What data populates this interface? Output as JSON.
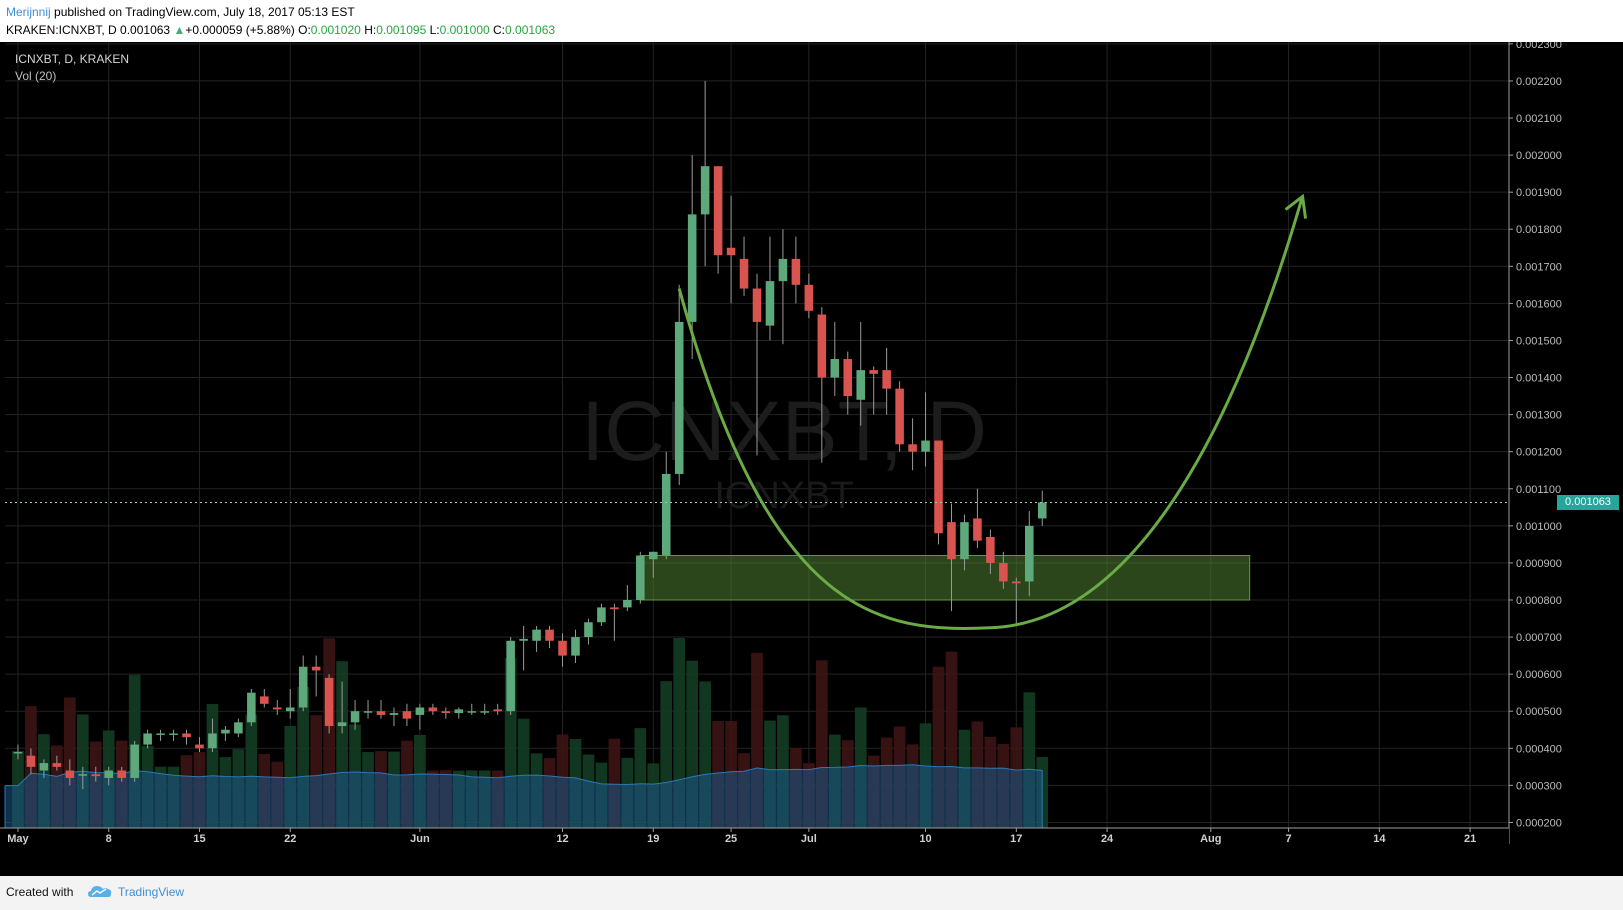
{
  "header": {
    "author": "Merijnnij",
    "published_text": "published on TradingView.com, July 18, 2017 05:13 EST",
    "symbol": "KRAKEN:ICNXBT, D",
    "last": "0.001063",
    "change_arrow": "▲",
    "change": "+0.000059 (+5.88%)",
    "o_label": "O:",
    "o_value": "0.001020",
    "h_label": "H:",
    "h_value": "0.001095",
    "l_label": "L:",
    "l_value": "0.001000",
    "c_label": "C:",
    "c_value": "0.001063"
  },
  "pane": {
    "title": "ICNXBT, D, KRAKEN",
    "volume_label": "Vol (20)",
    "watermark_big": "ICNXBT, D",
    "watermark_small": "ICNXBT",
    "last_price_label": "0.001063"
  },
  "footer": {
    "created_with": "Created with",
    "brand": "TradingView"
  },
  "colors": {
    "background": "#000000",
    "up_candle": "#5ea97c",
    "down_candle": "#d9534f",
    "support_zone": "#4f7f2f",
    "curve": "#6aab45",
    "volume_ma": "#1e5a8a",
    "grid": "#232323"
  },
  "chart_data": {
    "type": "candlestick",
    "y_axis": {
      "min": 0.000185,
      "max": 0.002305,
      "ticks": [
        "0.002300",
        "0.002200",
        "0.002100",
        "0.002000",
        "0.001900",
        "0.001800",
        "0.001700",
        "0.001600",
        "0.001500",
        "0.001400",
        "0.001300",
        "0.001200",
        "0.001100",
        "0.001000",
        "0.000900",
        "0.000800",
        "0.000700",
        "0.000600",
        "0.000500",
        "0.000400",
        "0.000300",
        "0.000200"
      ]
    },
    "x_axis": {
      "start_date": "2017-04-30",
      "end_date": "2017-08-24",
      "ticks": [
        {
          "date": "2017-05-01",
          "label": "May"
        },
        {
          "date": "2017-05-08",
          "label": "8"
        },
        {
          "date": "2017-05-15",
          "label": "15"
        },
        {
          "date": "2017-05-22",
          "label": "22"
        },
        {
          "date": "2017-06-01",
          "label": "Jun"
        },
        {
          "date": "2017-06-12",
          "label": "12"
        },
        {
          "date": "2017-06-19",
          "label": "19"
        },
        {
          "date": "2017-06-25",
          "label": "25"
        },
        {
          "date": "2017-07-01",
          "label": "Jul"
        },
        {
          "date": "2017-07-10",
          "label": "10"
        },
        {
          "date": "2017-07-17",
          "label": "17"
        },
        {
          "date": "2017-07-24",
          "label": "24"
        },
        {
          "date": "2017-08-01",
          "label": "Aug"
        },
        {
          "date": "2017-08-07",
          "label": "7"
        },
        {
          "date": "2017-08-14",
          "label": "14"
        },
        {
          "date": "2017-08-21",
          "label": "21"
        }
      ]
    },
    "candles": [
      {
        "date": "2017-05-01",
        "o": 0.00039,
        "h": 0.00041,
        "l": 0.00037,
        "c": 0.00039
      },
      {
        "date": "2017-05-02",
        "o": 0.00038,
        "h": 0.0004,
        "l": 0.00033,
        "c": 0.00035
      },
      {
        "date": "2017-05-03",
        "o": 0.00034,
        "h": 0.00037,
        "l": 0.00032,
        "c": 0.00036
      },
      {
        "date": "2017-05-04",
        "o": 0.00036,
        "h": 0.00038,
        "l": 0.00034,
        "c": 0.00035
      },
      {
        "date": "2017-05-05",
        "o": 0.00034,
        "h": 0.00037,
        "l": 0.0003,
        "c": 0.00032
      },
      {
        "date": "2017-05-06",
        "o": 0.00033,
        "h": 0.00035,
        "l": 0.00029,
        "c": 0.00033
      },
      {
        "date": "2017-05-07",
        "o": 0.00033,
        "h": 0.00035,
        "l": 0.00031,
        "c": 0.000325
      },
      {
        "date": "2017-05-08",
        "o": 0.00032,
        "h": 0.00035,
        "l": 0.0003,
        "c": 0.00034
      },
      {
        "date": "2017-05-09",
        "o": 0.00034,
        "h": 0.00035,
        "l": 0.00031,
        "c": 0.00032
      },
      {
        "date": "2017-05-10",
        "o": 0.00032,
        "h": 0.00042,
        "l": 0.00031,
        "c": 0.00041
      },
      {
        "date": "2017-05-11",
        "o": 0.00041,
        "h": 0.00045,
        "l": 0.0004,
        "c": 0.00044
      },
      {
        "date": "2017-05-12",
        "o": 0.00044,
        "h": 0.00045,
        "l": 0.00042,
        "c": 0.00044
      },
      {
        "date": "2017-05-13",
        "o": 0.00044,
        "h": 0.00045,
        "l": 0.00042,
        "c": 0.00044
      },
      {
        "date": "2017-05-14",
        "o": 0.00044,
        "h": 0.00045,
        "l": 0.00041,
        "c": 0.00043
      },
      {
        "date": "2017-05-15",
        "o": 0.00041,
        "h": 0.00043,
        "l": 0.00039,
        "c": 0.0004
      },
      {
        "date": "2017-05-16",
        "o": 0.0004,
        "h": 0.00048,
        "l": 0.00039,
        "c": 0.00044
      },
      {
        "date": "2017-05-17",
        "o": 0.00044,
        "h": 0.00046,
        "l": 0.00042,
        "c": 0.00045
      },
      {
        "date": "2017-05-18",
        "o": 0.00044,
        "h": 0.00048,
        "l": 0.00043,
        "c": 0.00047
      },
      {
        "date": "2017-05-19",
        "o": 0.00047,
        "h": 0.00056,
        "l": 0.00046,
        "c": 0.00055
      },
      {
        "date": "2017-05-20",
        "o": 0.00054,
        "h": 0.00056,
        "l": 0.00051,
        "c": 0.00052
      },
      {
        "date": "2017-05-21",
        "o": 0.00051,
        "h": 0.00053,
        "l": 0.00049,
        "c": 0.000505
      },
      {
        "date": "2017-05-22",
        "o": 0.0005,
        "h": 0.00056,
        "l": 0.00048,
        "c": 0.00051
      },
      {
        "date": "2017-05-23",
        "o": 0.00051,
        "h": 0.00065,
        "l": 0.0005,
        "c": 0.00062
      },
      {
        "date": "2017-05-24",
        "o": 0.00062,
        "h": 0.00065,
        "l": 0.00054,
        "c": 0.00061
      },
      {
        "date": "2017-05-25",
        "o": 0.00059,
        "h": 0.0006,
        "l": 0.00044,
        "c": 0.00046
      },
      {
        "date": "2017-05-26",
        "o": 0.00046,
        "h": 0.00058,
        "l": 0.00044,
        "c": 0.00047
      },
      {
        "date": "2017-05-27",
        "o": 0.00047,
        "h": 0.00053,
        "l": 0.00045,
        "c": 0.0005
      },
      {
        "date": "2017-05-28",
        "o": 0.0005,
        "h": 0.00053,
        "l": 0.00048,
        "c": 0.0005
      },
      {
        "date": "2017-05-29",
        "o": 0.0005,
        "h": 0.00053,
        "l": 0.00048,
        "c": 0.00049
      },
      {
        "date": "2017-05-30",
        "o": 0.00049,
        "h": 0.00051,
        "l": 0.00046,
        "c": 0.000495
      },
      {
        "date": "2017-05-31",
        "o": 0.0005,
        "h": 0.00052,
        "l": 0.00046,
        "c": 0.00048
      },
      {
        "date": "2017-06-01",
        "o": 0.00049,
        "h": 0.00052,
        "l": 0.00045,
        "c": 0.00051
      },
      {
        "date": "2017-06-02",
        "o": 0.00051,
        "h": 0.00052,
        "l": 0.00049,
        "c": 0.0005
      },
      {
        "date": "2017-06-03",
        "o": 0.0005,
        "h": 0.00051,
        "l": 0.00048,
        "c": 0.000495
      },
      {
        "date": "2017-06-04",
        "o": 0.000495,
        "h": 0.00051,
        "l": 0.00048,
        "c": 0.000505
      },
      {
        "date": "2017-06-05",
        "o": 0.0005,
        "h": 0.00052,
        "l": 0.00049,
        "c": 0.0005
      },
      {
        "date": "2017-06-06",
        "o": 0.0005,
        "h": 0.00052,
        "l": 0.00049,
        "c": 0.0005
      },
      {
        "date": "2017-06-07",
        "o": 0.000505,
        "h": 0.00052,
        "l": 0.00049,
        "c": 0.0005
      },
      {
        "date": "2017-06-08",
        "o": 0.0005,
        "h": 0.0007,
        "l": 0.00049,
        "c": 0.00069
      },
      {
        "date": "2017-06-09",
        "o": 0.00069,
        "h": 0.00073,
        "l": 0.00061,
        "c": 0.000695
      },
      {
        "date": "2017-06-10",
        "o": 0.00069,
        "h": 0.00073,
        "l": 0.00066,
        "c": 0.00072
      },
      {
        "date": "2017-06-11",
        "o": 0.00072,
        "h": 0.00073,
        "l": 0.00067,
        "c": 0.00069
      },
      {
        "date": "2017-06-12",
        "o": 0.00069,
        "h": 0.00071,
        "l": 0.00062,
        "c": 0.00065
      },
      {
        "date": "2017-06-13",
        "o": 0.00065,
        "h": 0.00072,
        "l": 0.00063,
        "c": 0.0007
      },
      {
        "date": "2017-06-14",
        "o": 0.0007,
        "h": 0.00075,
        "l": 0.00068,
        "c": 0.00074
      },
      {
        "date": "2017-06-15",
        "o": 0.00074,
        "h": 0.00079,
        "l": 0.00073,
        "c": 0.00078
      },
      {
        "date": "2017-06-16",
        "o": 0.00078,
        "h": 0.00079,
        "l": 0.00069,
        "c": 0.000775
      },
      {
        "date": "2017-06-17",
        "o": 0.00078,
        "h": 0.00084,
        "l": 0.00077,
        "c": 0.0008
      },
      {
        "date": "2017-06-18",
        "o": 0.0008,
        "h": 0.00093,
        "l": 0.00079,
        "c": 0.00092
      },
      {
        "date": "2017-06-19",
        "o": 0.00091,
        "h": 0.00093,
        "l": 0.00086,
        "c": 0.00093
      },
      {
        "date": "2017-06-20",
        "o": 0.00092,
        "h": 0.0012,
        "l": 0.00091,
        "c": 0.00114
      },
      {
        "date": "2017-06-21",
        "o": 0.00114,
        "h": 0.00165,
        "l": 0.00111,
        "c": 0.00155
      },
      {
        "date": "2017-06-22",
        "o": 0.00155,
        "h": 0.002,
        "l": 0.00145,
        "c": 0.00184
      },
      {
        "date": "2017-06-23",
        "o": 0.00184,
        "h": 0.0022,
        "l": 0.0017,
        "c": 0.00197
      },
      {
        "date": "2017-06-24",
        "o": 0.00197,
        "h": 0.00197,
        "l": 0.00168,
        "c": 0.00173
      },
      {
        "date": "2017-06-25",
        "o": 0.00175,
        "h": 0.00189,
        "l": 0.0016,
        "c": 0.00173
      },
      {
        "date": "2017-06-26",
        "o": 0.00172,
        "h": 0.00178,
        "l": 0.00162,
        "c": 0.00164
      },
      {
        "date": "2017-06-27",
        "o": 0.00164,
        "h": 0.00168,
        "l": 0.00119,
        "c": 0.00155
      },
      {
        "date": "2017-06-28",
        "o": 0.00154,
        "h": 0.00178,
        "l": 0.0015,
        "c": 0.00166
      },
      {
        "date": "2017-06-29",
        "o": 0.00166,
        "h": 0.0018,
        "l": 0.00149,
        "c": 0.00172
      },
      {
        "date": "2017-06-30",
        "o": 0.00172,
        "h": 0.00178,
        "l": 0.0016,
        "c": 0.00165
      },
      {
        "date": "2017-07-01",
        "o": 0.00165,
        "h": 0.00168,
        "l": 0.00156,
        "c": 0.00158
      },
      {
        "date": "2017-07-02",
        "o": 0.00157,
        "h": 0.00159,
        "l": 0.00117,
        "c": 0.0014
      },
      {
        "date": "2017-07-03",
        "o": 0.0014,
        "h": 0.00155,
        "l": 0.00135,
        "c": 0.00145
      },
      {
        "date": "2017-07-04",
        "o": 0.00145,
        "h": 0.00147,
        "l": 0.0013,
        "c": 0.00135
      },
      {
        "date": "2017-07-05",
        "o": 0.00134,
        "h": 0.00155,
        "l": 0.00127,
        "c": 0.00142
      },
      {
        "date": "2017-07-06",
        "o": 0.00142,
        "h": 0.00143,
        "l": 0.0013,
        "c": 0.00141
      },
      {
        "date": "2017-07-07",
        "o": 0.00142,
        "h": 0.00148,
        "l": 0.0013,
        "c": 0.00137
      },
      {
        "date": "2017-07-08",
        "o": 0.00137,
        "h": 0.00139,
        "l": 0.0012,
        "c": 0.00122
      },
      {
        "date": "2017-07-09",
        "o": 0.00122,
        "h": 0.00129,
        "l": 0.00115,
        "c": 0.0012
      },
      {
        "date": "2017-07-10",
        "o": 0.0012,
        "h": 0.00136,
        "l": 0.00116,
        "c": 0.00123
      },
      {
        "date": "2017-07-11",
        "o": 0.00123,
        "h": 0.00123,
        "l": 0.00095,
        "c": 0.00098
      },
      {
        "date": "2017-07-12",
        "o": 0.00101,
        "h": 0.00106,
        "l": 0.00077,
        "c": 0.00091
      },
      {
        "date": "2017-07-13",
        "o": 0.00091,
        "h": 0.00103,
        "l": 0.00088,
        "c": 0.00101
      },
      {
        "date": "2017-07-14",
        "o": 0.00102,
        "h": 0.0011,
        "l": 0.00094,
        "c": 0.00096
      },
      {
        "date": "2017-07-15",
        "o": 0.00097,
        "h": 0.00099,
        "l": 0.00087,
        "c": 0.0009
      },
      {
        "date": "2017-07-16",
        "o": 0.0009,
        "h": 0.00093,
        "l": 0.00083,
        "c": 0.00085
      },
      {
        "date": "2017-07-17",
        "o": 0.00085,
        "h": 0.00086,
        "l": 0.00073,
        "c": 0.000845
      },
      {
        "date": "2017-07-18",
        "o": 0.00085,
        "h": 0.00104,
        "l": 0.00081,
        "c": 0.001
      },
      {
        "date": "2017-07-19",
        "o": 0.00102,
        "h": 0.001095,
        "l": 0.001,
        "c": 0.001063
      }
    ],
    "volume_scale_max": 0.22
  }
}
